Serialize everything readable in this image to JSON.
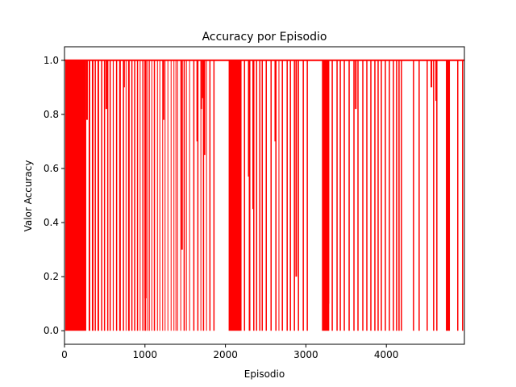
{
  "chart_data": {
    "type": "line",
    "title": "Accuracy por Episodio",
    "xlabel": "Episodio",
    "ylabel": "Valor Accuracy",
    "xlim": [
      0,
      4970
    ],
    "ylim": [
      -0.05,
      1.05
    ],
    "xticks": [
      0,
      1000,
      2000,
      3000,
      4000
    ],
    "yticks": [
      0.0,
      0.2,
      0.4,
      0.6,
      0.8,
      1.0
    ],
    "grid": false,
    "legend": "none",
    "series": [
      {
        "color": "#ff0000",
        "low_value": 0.0,
        "high_value": 1.0,
        "description_of_shape": "binary accuracy per episode, oscillating between 0 and 1; dense zero-runs early, sparser later",
        "zero_episode_ranges": [
          [
            10,
            270
          ],
          [
            300,
            320
          ],
          [
            340,
            360
          ],
          [
            375,
            390
          ],
          [
            410,
            430
          ],
          [
            455,
            470
          ],
          [
            490,
            505
          ],
          [
            530,
            545
          ],
          [
            560,
            575
          ],
          [
            600,
            612
          ],
          [
            640,
            655
          ],
          [
            680,
            700
          ],
          [
            725,
            740
          ],
          [
            760,
            770
          ],
          [
            790,
            810
          ],
          [
            830,
            845
          ],
          [
            865,
            880
          ],
          [
            900,
            915
          ],
          [
            935,
            945
          ],
          [
            965,
            975
          ],
          [
            985,
            995
          ],
          [
            1000,
            1015
          ],
          [
            1030,
            1040
          ],
          [
            1050,
            1060
          ],
          [
            1080,
            1090
          ],
          [
            1110,
            1125
          ],
          [
            1150,
            1160
          ],
          [
            1180,
            1190
          ],
          [
            1215,
            1225
          ],
          [
            1245,
            1255
          ],
          [
            1280,
            1290
          ],
          [
            1320,
            1330
          ],
          [
            1355,
            1365
          ],
          [
            1380,
            1390
          ],
          [
            1400,
            1410
          ],
          [
            1440,
            1450
          ],
          [
            1480,
            1495
          ],
          [
            1510,
            1520
          ],
          [
            1550,
            1560
          ],
          [
            1600,
            1615
          ],
          [
            1650,
            1665
          ],
          [
            1690,
            1700
          ],
          [
            1720,
            1735
          ],
          [
            1760,
            1770
          ],
          [
            1800,
            1815
          ],
          [
            1850,
            1865
          ],
          [
            2040,
            2200
          ],
          [
            2230,
            2245
          ],
          [
            2290,
            2310
          ],
          [
            2345,
            2360
          ],
          [
            2380,
            2395
          ],
          [
            2420,
            2435
          ],
          [
            2450,
            2465
          ],
          [
            2500,
            2515
          ],
          [
            2560,
            2575
          ],
          [
            2620,
            2635
          ],
          [
            2660,
            2670
          ],
          [
            2700,
            2715
          ],
          [
            2760,
            2775
          ],
          [
            2800,
            2815
          ],
          [
            2850,
            2865
          ],
          [
            2900,
            2915
          ],
          [
            2960,
            2975
          ],
          [
            3010,
            3025
          ],
          [
            3200,
            3290
          ],
          [
            3320,
            3335
          ],
          [
            3380,
            3395
          ],
          [
            3420,
            3435
          ],
          [
            3470,
            3485
          ],
          [
            3530,
            3545
          ],
          [
            3590,
            3605
          ],
          [
            3640,
            3655
          ],
          [
            3700,
            3715
          ],
          [
            3750,
            3765
          ],
          [
            3800,
            3815
          ],
          [
            3850,
            3865
          ],
          [
            3890,
            3905
          ],
          [
            3930,
            3945
          ],
          [
            3980,
            3995
          ],
          [
            4030,
            4045
          ],
          [
            4080,
            4095
          ],
          [
            4120,
            4135
          ],
          [
            4150,
            4165
          ],
          [
            4180,
            4195
          ],
          [
            4330,
            4345
          ],
          [
            4400,
            4415
          ],
          [
            4500,
            4515
          ],
          [
            4580,
            4595
          ],
          [
            4620,
            4635
          ],
          [
            4740,
            4790
          ],
          [
            4880,
            4895
          ],
          [
            4940,
            4955
          ]
        ],
        "partial_drops": [
          [
            280,
            0.78
          ],
          [
            520,
            0.82
          ],
          [
            740,
            0.9
          ],
          [
            1010,
            0.12
          ],
          [
            1230,
            0.78
          ],
          [
            1460,
            0.3
          ],
          [
            1650,
            0.7
          ],
          [
            1700,
            0.82
          ],
          [
            1720,
            0.86
          ],
          [
            1740,
            0.65
          ],
          [
            2290,
            0.57
          ],
          [
            2345,
            0.45
          ],
          [
            2620,
            0.7
          ],
          [
            2880,
            0.2
          ],
          [
            3280,
            0.1
          ],
          [
            3620,
            0.82
          ],
          [
            4560,
            0.9
          ],
          [
            4620,
            0.85
          ]
        ]
      }
    ]
  }
}
